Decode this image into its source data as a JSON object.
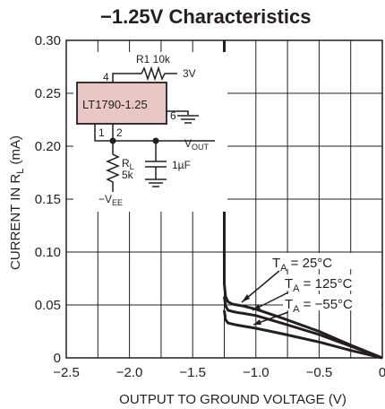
{
  "chart_data": {
    "type": "line",
    "title": "−1.25V Characteristics",
    "xlabel": "OUTPUT TO GROUND VOLTAGE (V)",
    "ylabel_parts": [
      "CURRENT IN R",
      "L",
      " (mA)"
    ],
    "xlim": [
      -2.5,
      0
    ],
    "ylim": [
      0,
      0.3
    ],
    "x_ticks": [
      -2.5,
      -2.0,
      -1.5,
      -1.0,
      -0.5,
      0
    ],
    "x_tick_labels": [
      "−2.5",
      "−2.0",
      "−1.5",
      "−1.0",
      "−0.5",
      "0"
    ],
    "y_ticks": [
      0,
      0.05,
      0.1,
      0.15,
      0.2,
      0.25,
      0.3
    ],
    "y_tick_labels": [
      "0",
      "0.05",
      "0.10",
      "0.15",
      "0.20",
      "0.25",
      "0.30"
    ],
    "grid": true,
    "series": [
      {
        "label_parts": [
          "T",
          "A",
          " = 25°C"
        ],
        "x": [
          -1.25,
          -1.25,
          -1.24,
          -1.22,
          -1.19,
          -1.15,
          -1.1,
          -1.0,
          -0.8,
          -0.5,
          -0.25,
          0.0
        ],
        "y": [
          0.3,
          0.07,
          0.058,
          0.053,
          0.051,
          0.05,
          0.049,
          0.046,
          0.038,
          0.025,
          0.012,
          0.0
        ]
      },
      {
        "label_parts": [
          "T",
          "A",
          " = 125°C"
        ],
        "x": [
          -1.25,
          -1.24,
          -1.22,
          -1.19,
          -1.15,
          -1.1,
          -1.0,
          -0.8,
          -0.5,
          -0.25,
          0.0
        ],
        "y": [
          0.058,
          0.049,
          0.045,
          0.044,
          0.043,
          0.042,
          0.04,
          0.033,
          0.022,
          0.011,
          0.0
        ]
      },
      {
        "label_parts": [
          "T",
          "A",
          " = −55°C"
        ],
        "x": [
          -1.25,
          -1.24,
          -1.22,
          -1.19,
          -1.15,
          -1.1,
          -1.0,
          -0.8,
          -0.5,
          -0.25,
          0.0
        ],
        "y": [
          0.045,
          0.036,
          0.033,
          0.032,
          0.031,
          0.03,
          0.028,
          0.023,
          0.015,
          0.007,
          0.0
        ]
      }
    ]
  },
  "schematic": {
    "r1_label": "R1 10k",
    "supply_label": "3V",
    "ic_label": "LT1790-1.25",
    "pin_4": "4",
    "pin_6": "6",
    "pin_1": "1",
    "pin_2": "2",
    "vout_parts": [
      "V",
      "OUT"
    ],
    "rl_parts": [
      "R",
      "L"
    ],
    "rl_value": "5k",
    "cap_label": "1µF",
    "vee_parts": [
      "−V",
      "EE"
    ]
  },
  "colors": {
    "ink": "#231f20",
    "ic_fill": "#e8c7c4"
  }
}
